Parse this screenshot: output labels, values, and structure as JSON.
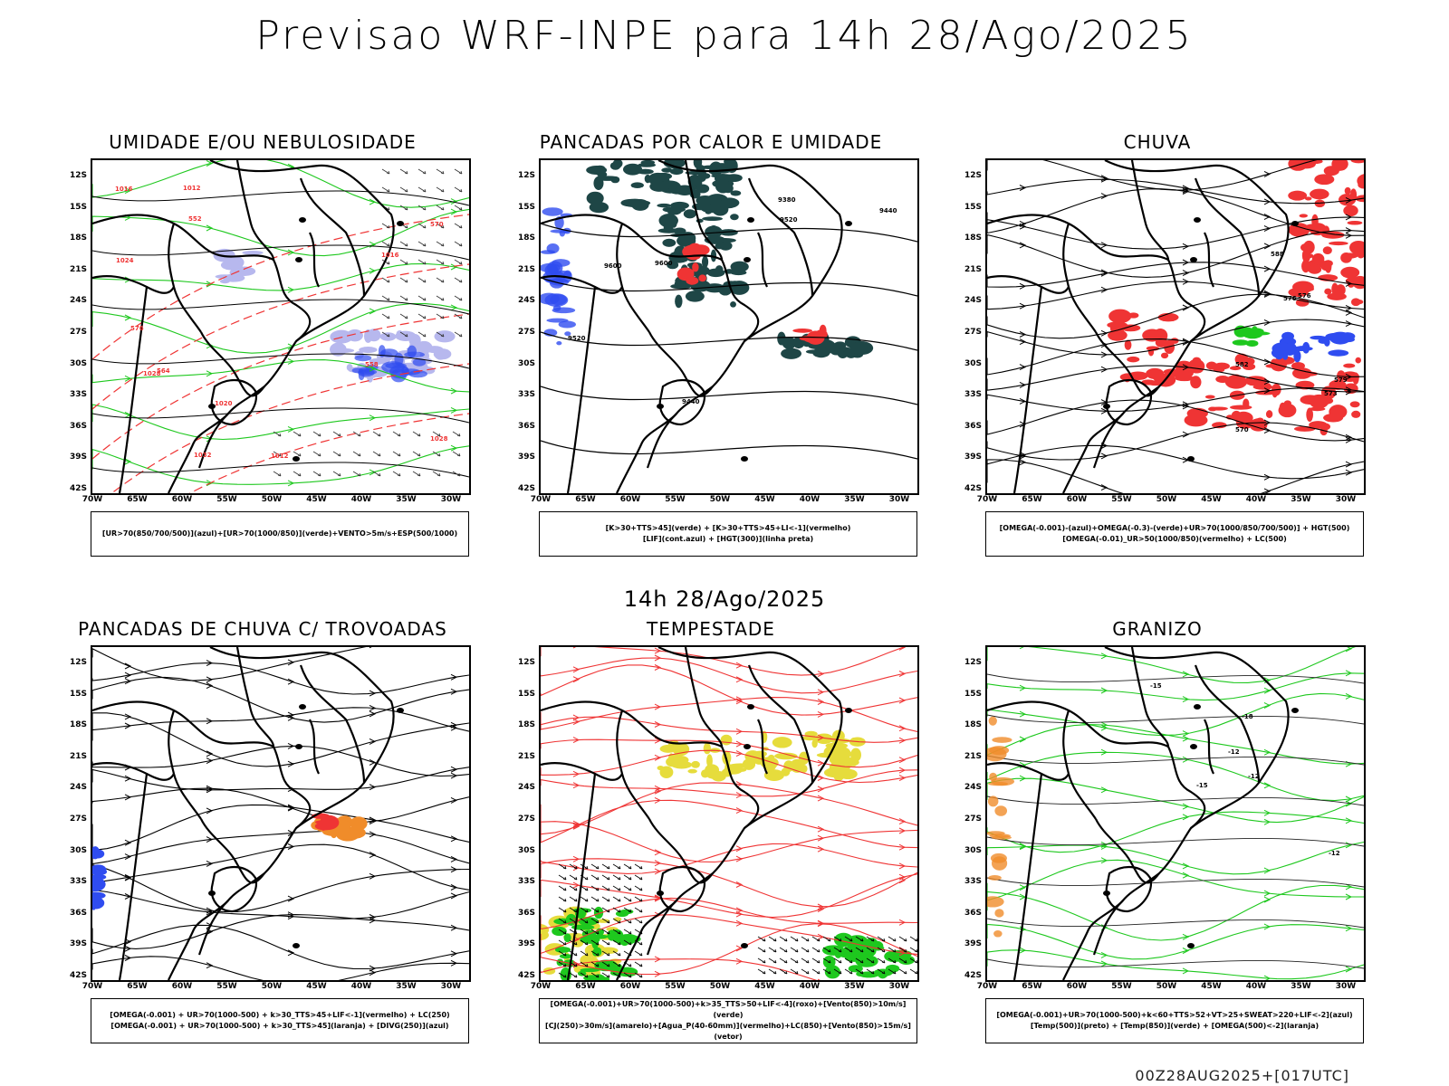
{
  "header": {
    "title": "Previsao WRF-INPE  para 14h 28/Ago/2025"
  },
  "mid_time": "14h 28/Ago/2025",
  "footer_stamp": "00Z28AUG2025+[017UTC]",
  "axes": {
    "lat_ticks": [
      "12S",
      "15S",
      "18S",
      "21S",
      "24S",
      "27S",
      "30S",
      "33S",
      "36S",
      "39S",
      "42S"
    ],
    "lon_ticks": [
      "70W",
      "65W",
      "60W",
      "55W",
      "50W",
      "45W",
      "40W",
      "35W",
      "30W"
    ]
  },
  "colors": {
    "red": "#ef3434",
    "green": "#1ec81e",
    "blue": "#2f4cf0",
    "lavender": "#b7b8ee",
    "dark_teal": "#1e4646",
    "yellow": "#e6dc3c",
    "orange": "#f08c2a",
    "black": "#000000"
  },
  "panels": [
    {
      "title": "UMIDADE E/OU NEBULOSIDADE",
      "legend": [
        "[UR>70(850/700/500)](azul)+[UR>70(1000/850)](verde)+VENTO>5m/s+ESP(500/1000)"
      ],
      "contour_labels": [
        "1016",
        "1012",
        "1016",
        "1020",
        "1024",
        "1028",
        "1032",
        "1028",
        "1012",
        "570",
        "576",
        "564",
        "558",
        "552"
      ]
    },
    {
      "title": "PANCADAS POR CALOR E UMIDADE",
      "legend": [
        "[K>30+TTS>45](verde) + [K>30+TTS>45+LI<-1](vermelho)",
        "[LIF](cont.azul) + [HGT(300)](linha preta)"
      ],
      "contour_labels": [
        "9600",
        "9520",
        "9440",
        "9520",
        "9380",
        "9440",
        "9600"
      ]
    },
    {
      "title": "CHUVA",
      "legend": [
        "[OMEGA(-0.001)-(azul)+OMEGA(-0.3)-(verde)+UR>70(1000/850/700/500)] + HGT(500)",
        "[OMEGA(-0.01)_UR>50(1000/850)(vermelho) + LC(500)"
      ],
      "contour_labels": [
        "582",
        "579",
        "576",
        "573",
        "570",
        "588",
        "576"
      ]
    },
    {
      "title": "PANCADAS DE CHUVA C/ TROVOADAS",
      "legend": [
        "[OMEGA(-0.001) + UR>70(1000-500) + k>30_TTS>45+LIF<-1](vermelho) + LC(250)",
        "[OMEGA(-0.001) + UR>70(1000-500) + k>30_TTS>45](laranja) + [DIVG(250)](azul)"
      ],
      "contour_labels": []
    },
    {
      "title": "TEMPESTADE",
      "legend": [
        "[OMEGA(-0.001)+UR>70(1000-500)+k>35_TTS>50+LIF<-4](roxo)+[Vento(850)>10m/s](verde)",
        "[CJ(250)>30m/s](amarelo)+[Agua_P(40-60mm)](vermelho)+LC(850)+[Vento(850)>15m/s](vetor)"
      ],
      "contour_labels": []
    },
    {
      "title": "GRANIZO",
      "legend": [
        "[OMEGA(-0.001)+UR>70(1000-500)+k<60+TTS>52+VT>25+SWEAT>220+LIF<-2](azul)",
        "[Temp(500)](preto) + [Temp(850)](verde) + [OMEGA(500)<-2](laranja)"
      ],
      "contour_labels": [
        "-12",
        "-12",
        "-15",
        "-18",
        "-15",
        "-12"
      ]
    }
  ]
}
